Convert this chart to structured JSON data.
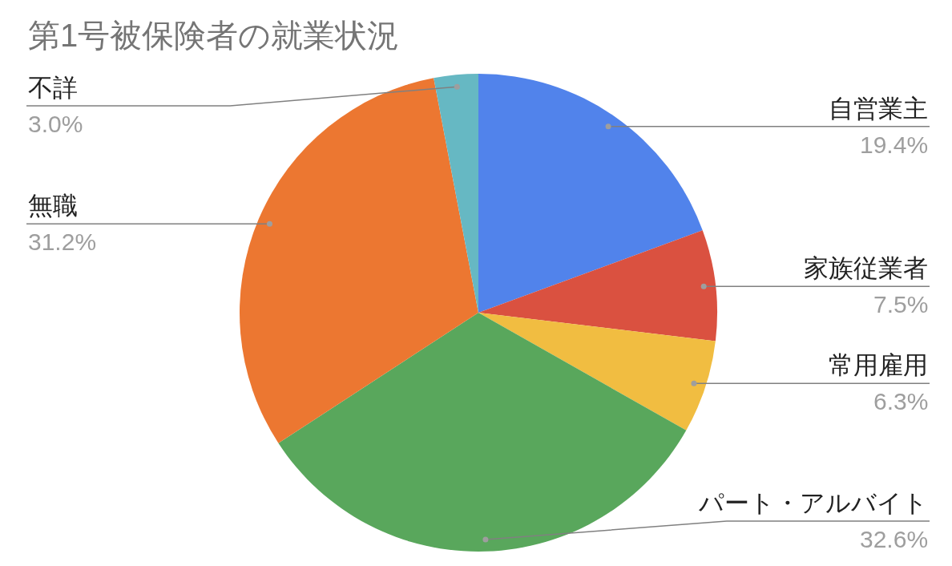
{
  "chart_data": {
    "type": "pie",
    "title": "第1号被保険者の就業状況",
    "categories": [
      "自営業主",
      "家族従業者",
      "常用雇用",
      "パート・アルバイト",
      "無職",
      "不詳"
    ],
    "values": [
      19.4,
      7.5,
      6.3,
      32.6,
      31.2,
      3.0
    ],
    "value_labels": [
      "19.4%",
      "7.5%",
      "6.3%",
      "32.6%",
      "31.2%",
      "3.0%"
    ],
    "colors": [
      "#5183eb",
      "#da5140",
      "#f1bd41",
      "#59a75c",
      "#ec7731",
      "#66b8c3"
    ],
    "legend": false
  }
}
